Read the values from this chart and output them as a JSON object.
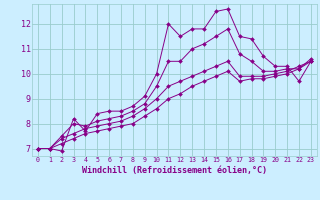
{
  "bg_color": "#cceeff",
  "line_color": "#880088",
  "grid_color": "#99cccc",
  "xlabel": "Windchill (Refroidissement éolien,°C)",
  "ylabel_ticks": [
    7,
    8,
    9,
    10,
    11,
    12
  ],
  "xticks": [
    0,
    1,
    2,
    3,
    4,
    5,
    6,
    7,
    8,
    9,
    10,
    11,
    12,
    13,
    14,
    15,
    16,
    17,
    18,
    19,
    20,
    21,
    22,
    23
  ],
  "xlim": [
    -0.5,
    23.5
  ],
  "ylim": [
    6.7,
    12.8
  ],
  "series": [
    [
      7.0,
      7.0,
      6.9,
      8.2,
      7.7,
      8.4,
      8.5,
      8.5,
      8.7,
      9.1,
      10.0,
      12.0,
      11.5,
      11.8,
      11.8,
      12.5,
      12.6,
      11.5,
      11.4,
      10.7,
      10.3,
      10.3,
      9.7,
      10.5
    ],
    [
      7.0,
      7.0,
      7.5,
      8.0,
      7.9,
      8.1,
      8.2,
      8.3,
      8.5,
      8.8,
      9.5,
      10.5,
      10.5,
      11.0,
      11.2,
      11.5,
      11.8,
      10.8,
      10.5,
      10.1,
      10.1,
      10.2,
      10.2,
      10.6
    ],
    [
      7.0,
      7.0,
      7.4,
      7.6,
      7.8,
      7.9,
      8.0,
      8.1,
      8.3,
      8.6,
      9.0,
      9.5,
      9.7,
      9.9,
      10.1,
      10.3,
      10.5,
      9.9,
      9.9,
      9.9,
      10.0,
      10.1,
      10.3,
      10.5
    ],
    [
      7.0,
      7.0,
      7.2,
      7.4,
      7.6,
      7.7,
      7.8,
      7.9,
      8.0,
      8.3,
      8.6,
      9.0,
      9.2,
      9.5,
      9.7,
      9.9,
      10.1,
      9.7,
      9.8,
      9.8,
      9.9,
      10.0,
      10.2,
      10.5
    ]
  ]
}
